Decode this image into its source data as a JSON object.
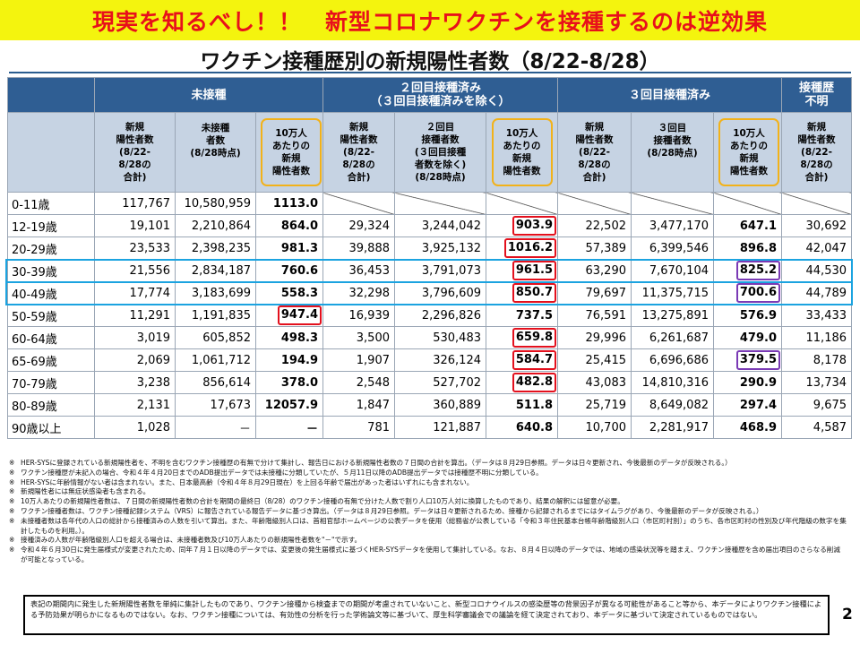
{
  "banner": "現実を知るべし！！　新型コロナワクチンを接種するのは逆効果",
  "title": "ワクチン接種歴別の新規陽性者数（8/22-8/28）",
  "header": {
    "groups": [
      "未接種",
      "２回目接種済み\n（３回目接種済みを除く）",
      "３回目接種済み",
      "接種歴\n不明"
    ],
    "sub": {
      "unvax_new": "新規\n陽性者数\n(8/22-\n8/28の\n合計)",
      "unvax_pop": "未接種\n者数\n(8/28時点)",
      "unvax_rate": "10万人\nあたりの\n新規\n陽性者数",
      "d2_new": "新規\n陽性者数\n(8/22-\n8/28の\n合計)",
      "d2_pop": "２回目\n接種者数\n(３回目接種\n者数を除く)\n(8/28時点)",
      "d2_rate": "10万人\nあたりの\n新規\n陽性者数",
      "d3_new": "新規\n陽性者数\n(8/22-\n8/28の\n合計)",
      "d3_pop": "３回目\n接種者数\n(8/28時点)",
      "d3_rate": "10万人\nあたりの\n新規\n陽性者数",
      "unk_new": "新規\n陽性者数\n(8/22-\n8/28の\n合計)"
    }
  },
  "rows": [
    {
      "age": "0-11歳",
      "u_new": "117,767",
      "u_pop": "10,580,959",
      "u_rate": "1113.0",
      "d2_new": "",
      "d2_pop": "",
      "d2_rate": "",
      "d3_new": "",
      "d3_pop": "",
      "d3_rate": "",
      "unk": ""
    },
    {
      "age": "12-19歳",
      "u_new": "19,101",
      "u_pop": "2,210,864",
      "u_rate": "864.0",
      "d2_new": "29,324",
      "d2_pop": "3,244,042",
      "d2_rate": "903.9",
      "d3_new": "22,502",
      "d3_pop": "3,477,170",
      "d3_rate": "647.1",
      "unk": "30,692"
    },
    {
      "age": "20-29歳",
      "u_new": "23,533",
      "u_pop": "2,398,235",
      "u_rate": "981.3",
      "d2_new": "39,888",
      "d2_pop": "3,925,132",
      "d2_rate": "1016.2",
      "d3_new": "57,389",
      "d3_pop": "6,399,546",
      "d3_rate": "896.8",
      "unk": "42,047"
    },
    {
      "age": "30-39歳",
      "u_new": "21,556",
      "u_pop": "2,834,187",
      "u_rate": "760.6",
      "d2_new": "36,453",
      "d2_pop": "3,791,073",
      "d2_rate": "961.5",
      "d3_new": "63,290",
      "d3_pop": "7,670,104",
      "d3_rate": "825.2",
      "unk": "44,530"
    },
    {
      "age": "40-49歳",
      "u_new": "17,774",
      "u_pop": "3,183,699",
      "u_rate": "558.3",
      "d2_new": "32,298",
      "d2_pop": "3,796,609",
      "d2_rate": "850.7",
      "d3_new": "79,697",
      "d3_pop": "11,375,715",
      "d3_rate": "700.6",
      "unk": "44,789"
    },
    {
      "age": "50-59歳",
      "u_new": "11,291",
      "u_pop": "1,191,835",
      "u_rate": "947.4",
      "d2_new": "16,939",
      "d2_pop": "2,296,826",
      "d2_rate": "737.5",
      "d3_new": "76,591",
      "d3_pop": "13,275,891",
      "d3_rate": "576.9",
      "unk": "33,433"
    },
    {
      "age": "60-64歳",
      "u_new": "3,019",
      "u_pop": "605,852",
      "u_rate": "498.3",
      "d2_new": "3,500",
      "d2_pop": "530,483",
      "d2_rate": "659.8",
      "d3_new": "29,996",
      "d3_pop": "6,261,687",
      "d3_rate": "479.0",
      "unk": "11,186"
    },
    {
      "age": "65-69歳",
      "u_new": "2,069",
      "u_pop": "1,061,712",
      "u_rate": "194.9",
      "d2_new": "1,907",
      "d2_pop": "326,124",
      "d2_rate": "584.7",
      "d3_new": "25,415",
      "d3_pop": "6,696,686",
      "d3_rate": "379.5",
      "unk": "8,178"
    },
    {
      "age": "70-79歳",
      "u_new": "3,238",
      "u_pop": "856,614",
      "u_rate": "378.0",
      "d2_new": "2,548",
      "d2_pop": "527,702",
      "d2_rate": "482.8",
      "d3_new": "43,083",
      "d3_pop": "14,810,316",
      "d3_rate": "290.9",
      "unk": "13,734"
    },
    {
      "age": "80-89歳",
      "u_new": "2,131",
      "u_pop": "17,673",
      "u_rate": "12057.9",
      "d2_new": "1,847",
      "d2_pop": "360,889",
      "d2_rate": "511.8",
      "d3_new": "25,719",
      "d3_pop": "8,649,082",
      "d3_rate": "297.4",
      "unk": "9,675"
    },
    {
      "age": "90歳以上",
      "u_new": "1,028",
      "u_pop": "－",
      "u_rate": "－",
      "d2_new": "781",
      "d2_pop": "121,887",
      "d2_rate": "640.8",
      "d3_new": "10,700",
      "d3_pop": "2,281,917",
      "d3_rate": "468.9",
      "unk": "4,587"
    }
  ],
  "notes": [
    {
      "mark": "※",
      "text": "HER-SYSに登録されている新規陽性者を、不明を含むワクチン接種歴の有無で分けて集計し、報告日における新規陽性者数の７日間の合計を算出。（データは８月29日参照。データは日々更新され、今後最新のデータが反映される。）"
    },
    {
      "mark": "※",
      "text": "ワクチン接種歴が未記入の場合、令和４年４月20日までのADB提出データでは未接種に分類していたが、５月11日以降のADB提出データでは接種歴不明に分類している。"
    },
    {
      "mark": "※",
      "text": "HER-SYSに年齢情報がない者は含まれない。また、日本最高齢（令和４年８月29日現在）を上回る年齢で届出があった者はいずれにも含まれない。"
    },
    {
      "mark": "※",
      "text": "新規陽性者には無症状感染者も含まれる。"
    },
    {
      "mark": "※",
      "text": "10万人あたりの新規陽性者数は、７日間の新規陽性者数の合計を期間の最終日（8/28）のワクチン接種の有無で分けた人数で割り人口10万人対に換算したものであり、結果の解釈には留意が必要。"
    },
    {
      "mark": "※",
      "text": "ワクチン接種者数は、ワクチン接種記録システム（VRS）に報告されている報告データに基づき算出。（データは８月29日参照。データは日々更新されるため、接種から記録されるまでにはタイムラグがあり、今後最新のデータが反映される。）"
    },
    {
      "mark": "※",
      "text": "未接種者数は各年代の人口の総計から接種済みの人数を引いて算出。また、年齢階級別人口は、首相官邸ホームページの公表データを使用（総務省が公表している「令和３年住民基本台帳年齢階級別人口（市区町村別）」のうち、各市区町村の性別及び年代階級の数字を集計したものを利用。）。"
    },
    {
      "mark": "※",
      "text": "接種済みの人数が年齢階級別人口を超える場合は、未接種者数及び10万人あたりの新規陽性者数を\"－\"で示す。"
    },
    {
      "mark": "※",
      "text": "令和４年６月30日に発生届様式が変更されたため、同年７月１日以降のデータでは、変更後の発生届様式に基づくHER-SYSデータを使用して集計している。なお、８月４日以降のデータでは、地域の感染状況等を踏まえ、ワクチン接種歴を含め届出項目のさらなる削減が可能となっている。"
    }
  ],
  "disclaimer": "表記の期間内に発生した新規陽性者数を単純に集計したものであり、ワクチン接種から検査までの期間が考慮されていないこと、新型コロナウイルスの感染歴等の背景因子が異なる可能性があること等から、本データによりワクチン接種による予防効果が明らかになるものではない。なお、ワクチン接種については、有効性の分析を行った学術論文等に基づいて、厚生科学審議会での議論を経て決定されており、本データに基づいて決定されているものではない。",
  "page_number": "2",
  "colors": {
    "banner_bg": "#f4f40e",
    "banner_text": "#e8101b",
    "header_blue": "#2f5e93",
    "subheader": "#c6d3e3",
    "red_box": "#e3101d",
    "purple_box": "#7a3ab5",
    "cyan_row": "#1ba3e0",
    "orange_box": "#f2b21a"
  }
}
